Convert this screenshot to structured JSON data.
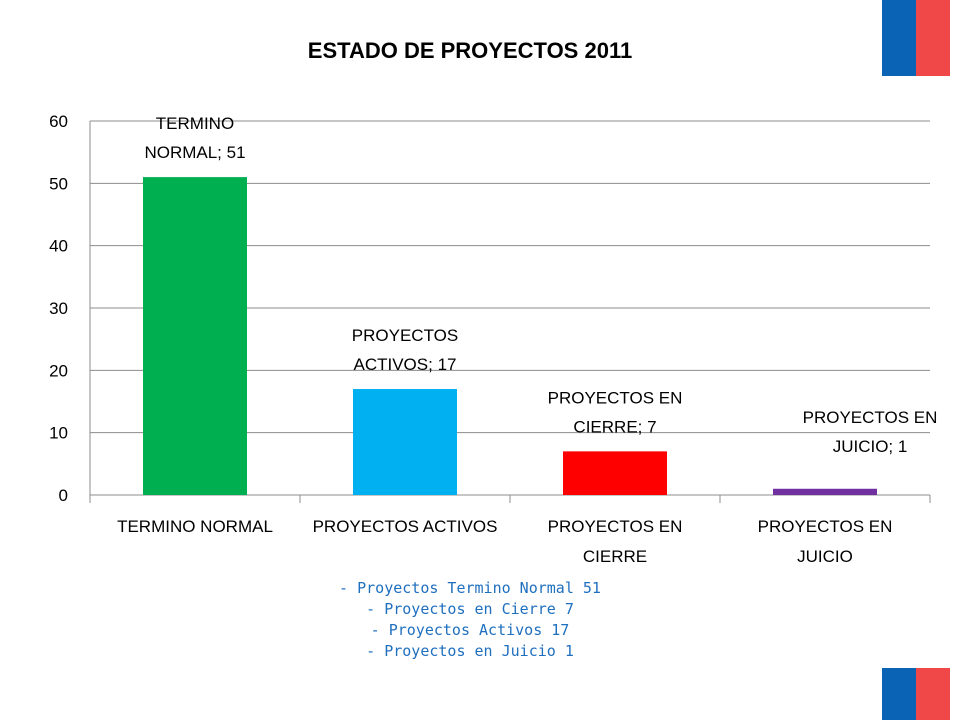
{
  "chart_data": {
    "type": "bar",
    "title": "ESTADO DE PROYECTOS 2011",
    "categories": [
      [
        "TERMINO NORMAL"
      ],
      [
        "PROYECTOS ACTIVOS"
      ],
      [
        "PROYECTOS EN",
        "CIERRE"
      ],
      [
        "PROYECTOS EN",
        "JUICIO"
      ]
    ],
    "values": [
      51,
      17,
      7,
      1
    ],
    "data_labels": [
      [
        "TERMINO",
        "NORMAL; 51"
      ],
      [
        "PROYECTOS",
        "ACTIVOS; 17"
      ],
      [
        "PROYECTOS EN",
        "CIERRE; 7"
      ],
      [
        "PROYECTOS EN",
        "JUICIO; 1"
      ]
    ],
    "colors": [
      "#00b050",
      "#00b0f0",
      "#ff0000",
      "#7030a0"
    ],
    "ylim": [
      0,
      60
    ],
    "yticks": [
      "0",
      "10",
      "20",
      "30",
      "40",
      "50",
      "60"
    ],
    "grid": true,
    "xlabel": "",
    "ylabel": ""
  },
  "notes": {
    "color": "#1f6fbf",
    "lines": [
      "- Proyectos Termino Normal 51",
      "- Proyectos en Cierre 7",
      "- Proyectos Activos 17",
      "- Proyectos en Juicio 1"
    ]
  },
  "flag_colors": {
    "blue": "#0b63b6",
    "red": "#f04848"
  }
}
